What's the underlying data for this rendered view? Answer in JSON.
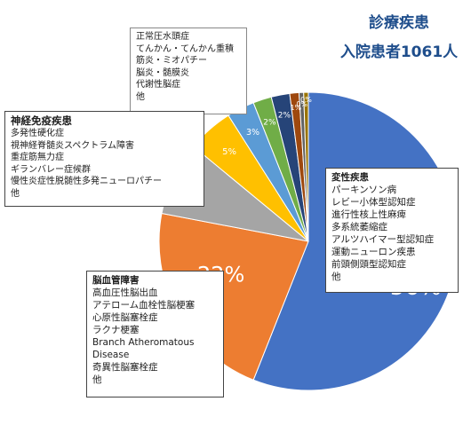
{
  "chart_data": {
    "type": "pie",
    "title": [
      "診療疾患",
      "入院患者1061人"
    ],
    "slices": [
      {
        "label": "変性疾患",
        "value": 56,
        "display": "56%",
        "color": "#4472c4"
      },
      {
        "label": "脳血管障害",
        "value": 22,
        "display": "22%",
        "color": "#ed7d31"
      },
      {
        "label": "神経免疫疾患",
        "value": 8,
        "display": "8%",
        "color": "#a5a5a5"
      },
      {
        "label": "",
        "value": 5,
        "display": "5%",
        "color": "#ffc000"
      },
      {
        "label": "",
        "value": 3,
        "display": "3%",
        "color": "#5b9bd5"
      },
      {
        "label": "",
        "value": 2,
        "display": "2%",
        "color": "#70ad47"
      },
      {
        "label": "",
        "value": 2,
        "display": "2%",
        "color": "#264478"
      },
      {
        "label": "",
        "value": 1,
        "display": "1%",
        "color": "#9e480e"
      },
      {
        "label": "",
        "value": 0.5,
        "display": "0%",
        "color": "#636363"
      },
      {
        "label": "",
        "value": 0.5,
        "display": "0%",
        "color": "#997300"
      }
    ],
    "start_angle_deg": 0,
    "direction": "clockwise"
  },
  "boxes": {
    "misc": {
      "items": [
        "正常圧水頭症",
        "てんかん・てんかん重積",
        "筋炎・ミオパチー",
        "脳炎・髄膜炎",
        "代謝性脳症",
        "他"
      ]
    },
    "neuroimmune": {
      "title": "神経免疫疾患",
      "items": [
        "多発性硬化症",
        "視神経脊髄炎スペクトラム障害",
        "重症筋無力症",
        "ギランバレー症候群",
        "慢性炎症性脱髄性多発ニューロパチー",
        "他"
      ]
    },
    "cerebrovascular": {
      "title": "脳血管障害",
      "items": [
        "高血圧性脳出血",
        "アテローム血栓性脳梗塞",
        "心原性脳塞栓症",
        "ラクナ梗塞",
        "Branch Atheromatous",
        "Disease",
        "奇異性脳塞栓症",
        "他"
      ]
    },
    "degenerative": {
      "title": "変性疾患",
      "items": [
        "パーキンソン病",
        "レビー小体型認知症",
        "進行性核上性麻痺",
        "多系統萎縮症",
        "アルツハイマー型認知症",
        "運動ニューロン疾患",
        "前頭側頭型認知症",
        "他"
      ]
    }
  }
}
